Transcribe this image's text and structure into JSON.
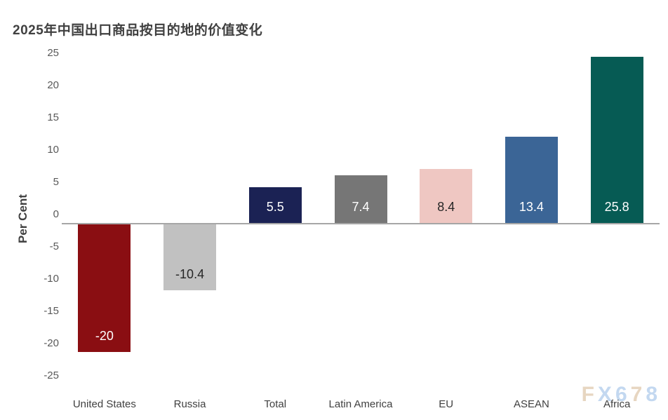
{
  "title": "2025年中国出口商品按目的地的价值变化",
  "chart_data": {
    "type": "bar",
    "title": "2025年中国出口商品按目的地的价值变化",
    "categories": [
      "United States",
      "Russia",
      "Total",
      "Latin America",
      "EU",
      "ASEAN",
      "Africa"
    ],
    "values": [
      -20,
      -10.4,
      5.5,
      7.4,
      8.4,
      13.4,
      25.8
    ],
    "value_labels": [
      "-20",
      "-10.4",
      "5.5",
      "7.4",
      "8.4",
      "13.4",
      "25.8"
    ],
    "bar_colors": [
      "#8A0E12",
      "#C1C1C1",
      "#1B2254",
      "#767676",
      "#EFC7C2",
      "#3B6596",
      "#065B54"
    ],
    "value_label_colors": [
      "#FFFFFF",
      "#262626",
      "#FFFFFF",
      "#FFFFFF",
      "#262626",
      "#FFFFFF",
      "#FFFFFF"
    ],
    "xlabel": "",
    "ylabel": "Per Cent",
    "ylim": [
      -25,
      25
    ],
    "yticks": [
      25,
      20,
      15,
      10,
      5,
      0,
      -5,
      -10,
      -15,
      -20,
      -25
    ],
    "grid": false,
    "legend_position": "none"
  },
  "watermark": {
    "text": "FX678",
    "letter_colors": [
      "#E7D6C1",
      "#C3D8F0",
      "#C3D8F0",
      "#E7D6C1",
      "#C3D8F0"
    ]
  },
  "colors": {
    "background": "#FFFFFF",
    "title_text": "#404040",
    "axis_line": "#A6A6A6",
    "tick_text": "#595959",
    "category_text": "#404040"
  }
}
